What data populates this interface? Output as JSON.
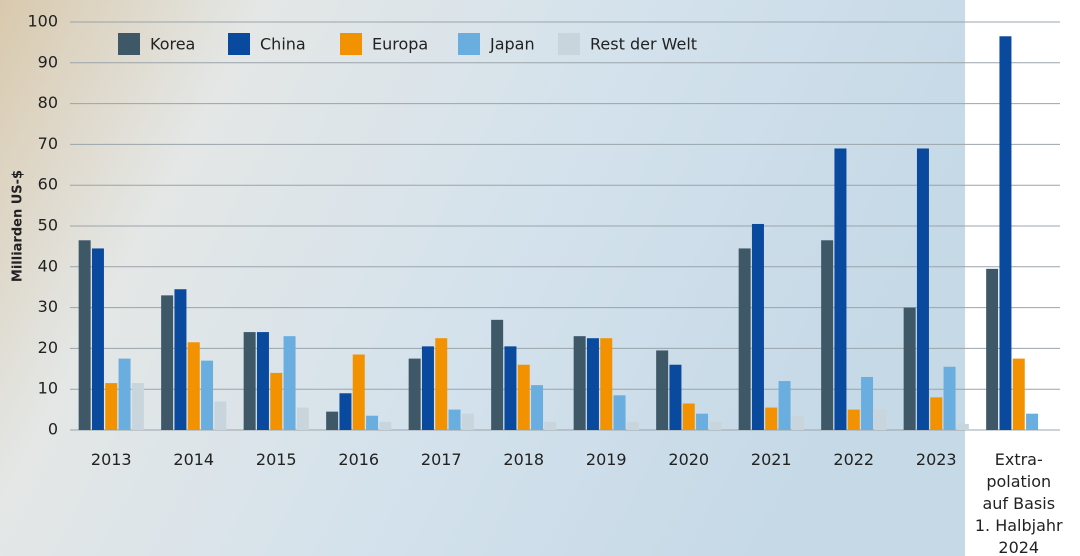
{
  "chart_data": {
    "type": "bar",
    "y_label": "Milliarden US-$",
    "categories": [
      "2013",
      "2014",
      "2015",
      "2016",
      "2017",
      "2018",
      "2019",
      "2020",
      "2021",
      "2022",
      "2023",
      "Extra-\npolation\nauf Basis\n1. Halbjahr\n2024"
    ],
    "series": [
      {
        "name": "Korea",
        "color": "#3f5868",
        "values": [
          46.5,
          33,
          24,
          4.5,
          17.5,
          27,
          23,
          19.5,
          44.5,
          46.5,
          30,
          39.5
        ]
      },
      {
        "name": "China",
        "color": "#0a4a9e",
        "values": [
          44.5,
          34.5,
          24,
          9,
          20.5,
          20.5,
          22.5,
          16,
          50.5,
          69,
          69,
          96.5
        ]
      },
      {
        "name": "Europa",
        "color": "#f39200",
        "values": [
          11.5,
          21.5,
          14,
          18.5,
          22.5,
          16,
          22.5,
          6.5,
          5.5,
          5,
          8,
          17.5
        ]
      },
      {
        "name": "Japan",
        "color": "#6aaee0",
        "values": [
          17.5,
          17,
          23,
          3.5,
          5,
          11,
          8.5,
          4,
          12,
          13,
          15.5,
          4
        ]
      },
      {
        "name": "Rest der Welt",
        "color": "#c9d5dc",
        "values": [
          11.5,
          7,
          5.5,
          2,
          4,
          2,
          2,
          2,
          3.5,
          5,
          1.5,
          null
        ]
      }
    ],
    "ylim": [
      0,
      100
    ],
    "yticks": [
      0,
      10,
      20,
      30,
      40,
      50,
      60,
      70,
      80,
      90,
      100
    ],
    "grid": true
  }
}
